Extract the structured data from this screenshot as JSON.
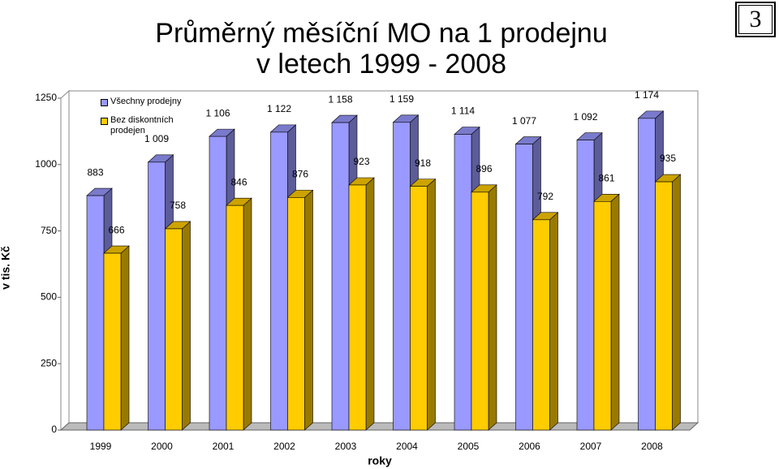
{
  "page_number": "3",
  "chart_data": {
    "type": "bar3d",
    "title": [
      "Průměrný měsíční MO na 1 prodejnu",
      "v letech 1999 - 2008"
    ],
    "x_label": "roky",
    "y_label": "v tis. Kč",
    "categories": [
      "1999",
      "2000",
      "2001",
      "2002",
      "2003",
      "2004",
      "2005",
      "2006",
      "2007",
      "2008"
    ],
    "series": [
      {
        "name": "Všechny prodejny",
        "color": "#9999ff",
        "values": [
          883,
          1009,
          1106,
          1122,
          1158,
          1159,
          1114,
          1077,
          1092,
          1174
        ],
        "value_labels": [
          "883",
          "1 009",
          "1 106",
          "1 122",
          "1 158",
          "1 159",
          "1 114",
          "1 077",
          "1 092",
          "1 174"
        ]
      },
      {
        "name": "Bez diskontních prodejen",
        "color": "#ffcc00",
        "values": [
          666,
          758,
          846,
          876,
          923,
          918,
          896,
          792,
          861,
          935
        ]
      }
    ],
    "ylim": [
      0,
      1250
    ],
    "yticks": [
      0,
      250,
      500,
      750,
      1000,
      1250
    ]
  }
}
